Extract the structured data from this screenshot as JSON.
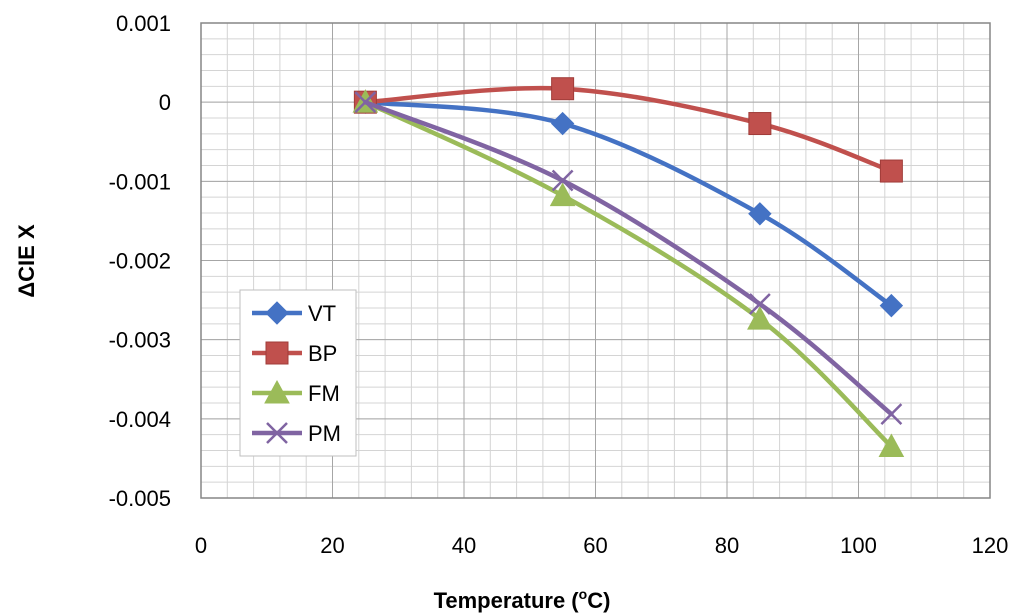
{
  "chart_data": {
    "type": "line",
    "title": "",
    "xlabel_main": "Temperature (",
    "xlabel_sup": "o",
    "xlabel_end": "C)",
    "ylabel": "ΔCIE X",
    "xlim": [
      0,
      120
    ],
    "ylim": [
      -0.005,
      0.001
    ],
    "x_ticks": [
      0,
      20,
      40,
      60,
      80,
      100,
      120
    ],
    "x_tick_labels": [
      "0",
      "20",
      "40",
      "60",
      "80",
      "100",
      "120"
    ],
    "y_ticks": [
      0.001,
      0,
      -0.001,
      -0.002,
      -0.003,
      -0.004,
      -0.005
    ],
    "y_tick_labels": [
      "0.001",
      "0",
      "-0.001",
      "-0.002",
      "-0.003",
      "-0.004",
      "-0.005"
    ],
    "grid": true,
    "legend_position": "bottom-left",
    "x": [
      25,
      55,
      85,
      105
    ],
    "series": [
      {
        "name": "VT",
        "marker": "diamond",
        "color": "#4472C4",
        "values": [
          0,
          -0.00027,
          -0.00141,
          -0.00257
        ]
      },
      {
        "name": "BP",
        "marker": "square",
        "color": "#C0504D",
        "values": [
          0,
          0.00017,
          -0.00027,
          -0.00087
        ]
      },
      {
        "name": "FM",
        "marker": "triangle",
        "color": "#9BBB59",
        "values": [
          0,
          -0.00118,
          -0.00274,
          -0.00435
        ]
      },
      {
        "name": "PM",
        "marker": "x",
        "color": "#8064A2",
        "values": [
          0,
          -0.00099,
          -0.00255,
          -0.00394
        ]
      }
    ]
  }
}
